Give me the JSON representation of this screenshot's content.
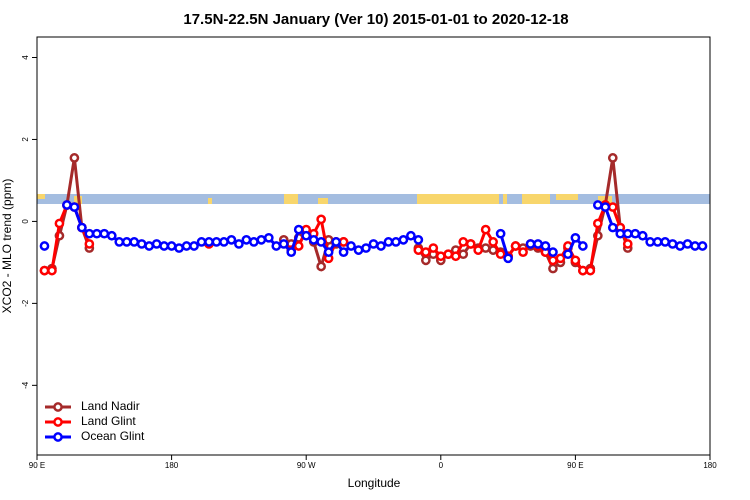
{
  "chart_data": {
    "type": "line",
    "title": "17.5N-22.5N January (Ver 10)   2015-01-01 to 2020-12-18",
    "x_label": "Longitude",
    "y_label": "XCO2 - MLO trend (ppm)",
    "xlim": [
      90,
      540
    ],
    "ylim": [
      -5.7,
      4.5
    ],
    "xticks": [
      {
        "value": 90,
        "label": "90 E"
      },
      180,
      {
        "value": 270,
        "label": "90 W"
      },
      {
        "value": 360,
        "label": "0"
      },
      {
        "value": 450,
        "label": "90 E"
      },
      {
        "value": 540,
        "label": "180"
      }
    ],
    "yticks": [
      -4,
      -2,
      0,
      2,
      4
    ],
    "legend": "bottom left",
    "series": [
      {
        "name": "Land Nadir",
        "color": "#a52a2a",
        "x": [
          95,
          100,
          105,
          110,
          115,
          120,
          125,
          130,
          255,
          260,
          265,
          270,
          275,
          280,
          285,
          290,
          295,
          300,
          345,
          350,
          355,
          360,
          365,
          370,
          375,
          380,
          385,
          390,
          395,
          400,
          405,
          410,
          415,
          420,
          425,
          430,
          435,
          440,
          445,
          450,
          455,
          460,
          465,
          470,
          475,
          480,
          485
        ],
        "values": [
          -1.2,
          -1.15,
          -0.35,
          0.4,
          1.55,
          -0.15,
          -0.65,
          null,
          -0.45,
          -0.55,
          -0.4,
          -0.25,
          -0.5,
          -1.1,
          -0.45,
          -0.55,
          -0.5,
          null,
          -0.65,
          -0.95,
          -0.8,
          -0.95,
          -0.8,
          -0.7,
          -0.8,
          -0.55,
          -0.65,
          -0.65,
          -0.7,
          -0.75,
          -0.85,
          -0.6,
          -0.65,
          -0.6,
          -0.65,
          -0.75,
          -1.15,
          -1.0,
          -0.65,
          -1.0,
          -1.2,
          -1.15,
          -0.35,
          0.4,
          1.55,
          -0.15,
          -0.65
        ]
      },
      {
        "name": "Land Glint",
        "color": "#ff0000",
        "x": [
          95,
          100,
          105,
          110,
          115,
          120,
          125,
          130,
          205,
          210,
          260,
          265,
          270,
          275,
          280,
          285,
          290,
          295,
          300,
          345,
          350,
          355,
          360,
          365,
          370,
          375,
          380,
          385,
          390,
          395,
          400,
          405,
          410,
          415,
          420,
          425,
          430,
          435,
          440,
          445,
          450,
          455,
          460,
          465,
          470,
          475,
          480,
          485
        ],
        "values": [
          -1.2,
          -1.2,
          -0.05,
          0.4,
          0.35,
          -0.15,
          -0.55,
          null,
          -0.55,
          null,
          -0.7,
          -0.6,
          -0.2,
          -0.3,
          0.05,
          -0.9,
          -0.5,
          -0.5,
          null,
          -0.7,
          -0.75,
          -0.65,
          -0.85,
          -0.8,
          -0.85,
          -0.5,
          -0.55,
          -0.7,
          -0.2,
          -0.5,
          -0.8,
          -0.85,
          -0.6,
          -0.75,
          -0.55,
          -0.6,
          -0.75,
          -0.95,
          -0.9,
          -0.6,
          -0.95,
          -1.2,
          -1.2,
          -0.05,
          0.4,
          0.35,
          -0.15,
          -0.55
        ]
      },
      {
        "name": "Ocean Glint",
        "color": "#0000ff",
        "x": [
          95,
          100,
          110,
          115,
          120,
          125,
          130,
          135,
          140,
          145,
          150,
          155,
          160,
          165,
          170,
          175,
          180,
          185,
          190,
          195,
          200,
          205,
          210,
          215,
          220,
          225,
          230,
          235,
          240,
          245,
          250,
          255,
          260,
          265,
          270,
          275,
          280,
          285,
          290,
          295,
          300,
          305,
          310,
          315,
          320,
          325,
          330,
          335,
          340,
          345,
          350,
          400,
          405,
          410,
          420,
          425,
          430,
          435,
          440,
          445,
          450,
          455,
          460,
          465,
          470,
          475,
          480,
          485,
          490,
          495,
          500,
          505,
          510,
          515,
          520,
          525,
          530,
          535
        ],
        "values": [
          -0.6,
          null,
          0.4,
          0.35,
          -0.15,
          -0.3,
          -0.3,
          -0.3,
          -0.35,
          -0.5,
          -0.5,
          -0.5,
          -0.55,
          -0.6,
          -0.55,
          -0.6,
          -0.6,
          -0.65,
          -0.6,
          -0.6,
          -0.5,
          -0.5,
          -0.5,
          -0.5,
          -0.45,
          -0.55,
          -0.45,
          -0.5,
          -0.45,
          -0.4,
          -0.6,
          -0.55,
          -0.75,
          -0.2,
          -0.35,
          -0.45,
          -0.5,
          -0.75,
          -0.5,
          -0.75,
          -0.6,
          -0.7,
          -0.65,
          -0.55,
          -0.6,
          -0.5,
          -0.5,
          -0.45,
          -0.35,
          -0.45,
          null,
          -0.3,
          -0.9,
          null,
          -0.55,
          -0.55,
          -0.6,
          -0.75,
          null,
          -0.8,
          -0.4,
          -0.6,
          null,
          0.4,
          0.35,
          -0.15,
          -0.3,
          -0.3,
          -0.3,
          -0.35,
          -0.5,
          -0.5,
          -0.5,
          -0.55,
          -0.6,
          -0.55,
          -0.6,
          -0.6
        ]
      }
    ]
  }
}
